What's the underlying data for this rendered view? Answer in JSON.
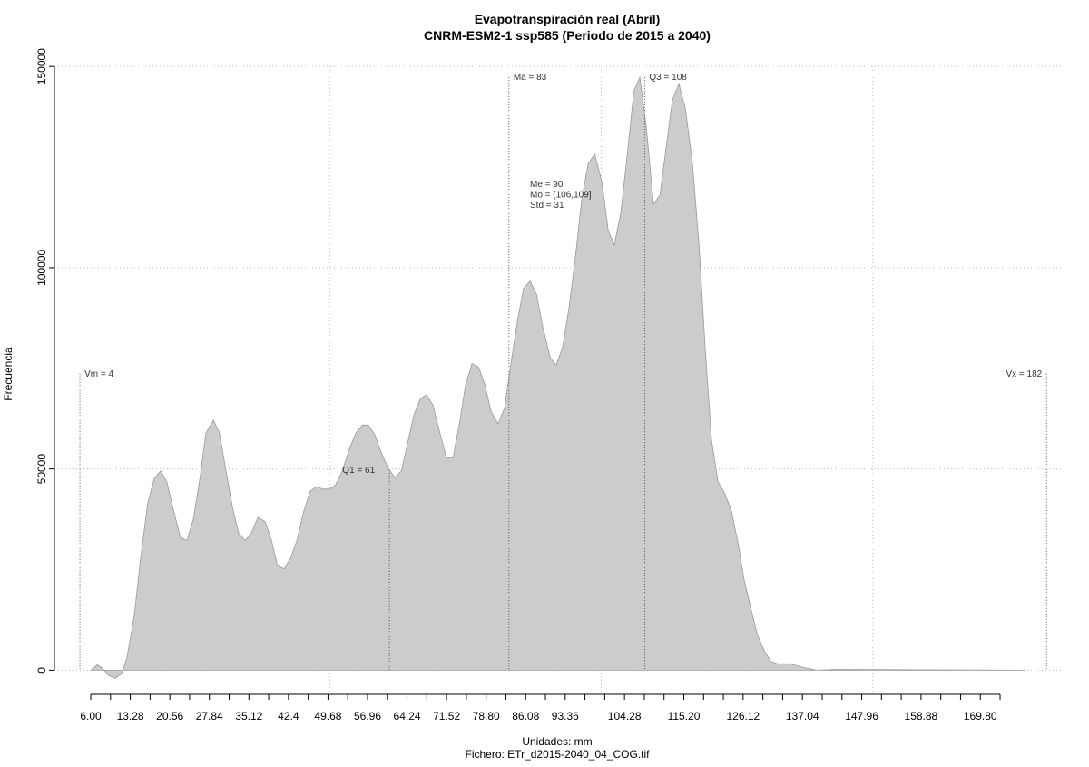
{
  "chart_data": {
    "type": "area",
    "title": "Evapotranspiración real (Abril)",
    "subtitle": "CNRM-ESM2-1 ssp585 (Periodo de 2015 a 2040)",
    "xlabel": "Unidades: mm",
    "footer": "Fichero: ETr_d2015-2040_04_COG.tif",
    "ylabel": "Frecuencia",
    "x": [
      6,
      7.2,
      8.2,
      9.3,
      10.5,
      11.7,
      12.7,
      14,
      15.2,
      16.5,
      17.7,
      18.9,
      20,
      21.2,
      22.5,
      23.7,
      24.9,
      26.1,
      27.2,
      28.6,
      29.7,
      30.9,
      32.1,
      33.2,
      34.4,
      35.6,
      36.8,
      38.1,
      39.3,
      40.4,
      41.6,
      42.8,
      44,
      45.1,
      46.4,
      47.6,
      48.8,
      50,
      51.1,
      52.3,
      53.6,
      54.8,
      56,
      57.1,
      58.3,
      59.5,
      60.8,
      62,
      63.2,
      64.3,
      65.5,
      66.7,
      67.8,
      69,
      70.3,
      71.5,
      72.7,
      73.9,
      75,
      76.2,
      77.4,
      78.6,
      79.7,
      81,
      82.2,
      83.4,
      84.6,
      85.7,
      86.9,
      88.1,
      89.2,
      90.6,
      91.7,
      92.9,
      94.1,
      95.3,
      96.4,
      97.6,
      98.8,
      100.1,
      101.3,
      102.4,
      103.6,
      104.8,
      106,
      107.1,
      108.3,
      109.6,
      110.8,
      112,
      113.1,
      114.3,
      115.5,
      116.8,
      118,
      119.2,
      120.3,
      121.5,
      122.8,
      124,
      125.2,
      126.3,
      127.5,
      128.7,
      130,
      131.2,
      132.4,
      134.7,
      137.2,
      139.7,
      143,
      178
    ],
    "series": [
      {
        "name": "Frecuencia",
        "color": "#cccccc",
        "values": [
          0,
          1350,
          450,
          -1350,
          -2000,
          -900,
          3400,
          13500,
          28100,
          41600,
          47700,
          49500,
          46800,
          40000,
          33000,
          32200,
          37600,
          47700,
          58900,
          62100,
          58900,
          49500,
          40500,
          34200,
          32200,
          34200,
          38000,
          36900,
          32200,
          25900,
          25200,
          27900,
          32400,
          38900,
          44500,
          45600,
          45000,
          45000,
          46100,
          49500,
          54900,
          58900,
          60900,
          60900,
          58500,
          54000,
          50100,
          47900,
          49500,
          56200,
          63400,
          67500,
          68400,
          65900,
          58900,
          52800,
          52800,
          61400,
          70800,
          76200,
          75300,
          70800,
          64300,
          61200,
          65200,
          76500,
          87000,
          94900,
          96700,
          93300,
          85500,
          77600,
          75800,
          80300,
          90400,
          103400,
          116900,
          125900,
          128200,
          121400,
          109100,
          105700,
          113600,
          128200,
          143900,
          147300,
          134900,
          115800,
          118000,
          130400,
          141700,
          145700,
          139400,
          125900,
          105700,
          78700,
          57300,
          46800,
          43800,
          39400,
          31500,
          22500,
          15700,
          9000,
          4900,
          2200,
          1600,
          1600,
          700,
          0,
          200,
          0
        ]
      }
    ],
    "xlim": [
      -0.69,
      184.8
    ],
    "ylim": [
      -6000,
      155000
    ],
    "xticks": [
      {
        "value": 6,
        "label": "6.00"
      },
      13.28,
      20.56,
      27.84,
      35.12,
      42.4,
      49.68,
      56.96,
      64.24,
      71.52,
      {
        "value": 78.8,
        "label": "78.80"
      },
      86.08,
      93.36,
      104.28,
      {
        "value": 115.2,
        "label": "115.20"
      },
      126.12,
      137.04,
      147.96,
      158.88,
      {
        "value": 169.8,
        "label": "169.80"
      }
    ],
    "xminor_ticks": [
      9.64,
      16.92,
      24.2,
      31.48,
      38.76,
      46.04,
      53.32,
      60.6,
      67.88,
      75.16,
      82.44,
      89.72,
      97,
      100.64,
      107.92,
      111.56,
      118.84,
      122.48,
      129.76,
      133.4,
      140.68,
      144.32,
      151.6,
      155.24,
      162.52,
      166.16,
      173.44
    ],
    "yticks": [
      0,
      50000,
      100000,
      150000
    ],
    "xgrid": [
      50,
      100,
      150
    ],
    "grid": true,
    "markers": [
      {
        "label": "Vm = 4",
        "x": 4
      },
      {
        "label": "Q1 = 61",
        "x": 61
      },
      {
        "label": "Ma = 83",
        "x": 83
      },
      {
        "label": "Q3 = 108",
        "x": 108
      },
      {
        "label": "Vx = 182",
        "x": 182
      }
    ],
    "stats": [
      "Me = 90",
      "Mo = (106,109]",
      "Std = 31"
    ]
  }
}
